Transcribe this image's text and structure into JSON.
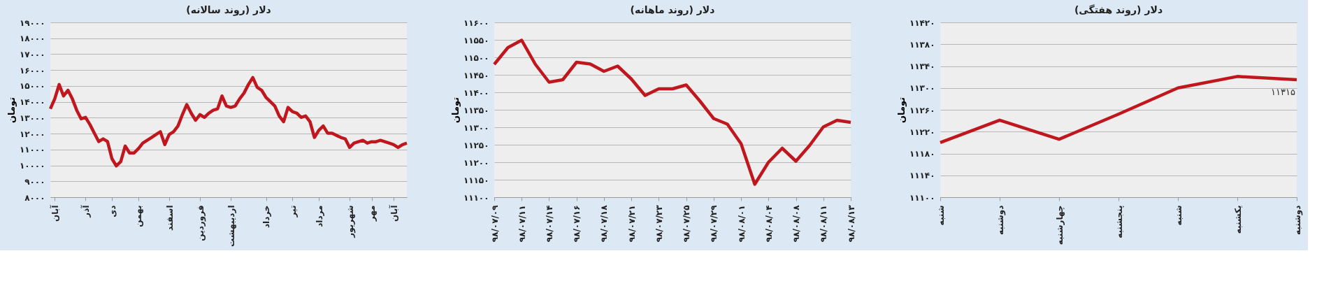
{
  "chart_data": [
    {
      "type": "line",
      "title": "دلار (روند سالانه)",
      "ylabel": "تومان",
      "grid": "y",
      "marker": "none",
      "line_style": "solid",
      "categories": [
        null,
        "آبان",
        null,
        null,
        null,
        null,
        null,
        null,
        "آذر",
        null,
        null,
        null,
        null,
        null,
        "دی",
        null,
        null,
        null,
        null,
        null,
        "بهمن",
        null,
        null,
        null,
        null,
        null,
        null,
        "اسفند",
        null,
        null,
        null,
        null,
        null,
        null,
        "فروردین",
        null,
        null,
        null,
        null,
        null,
        null,
        "اردیبهشت",
        null,
        null,
        null,
        null,
        null,
        null,
        null,
        "خرداد",
        null,
        null,
        null,
        null,
        null,
        "تیر",
        null,
        null,
        null,
        null,
        null,
        "مرداد",
        null,
        null,
        null,
        null,
        null,
        null,
        "شهریور",
        null,
        null,
        null,
        null,
        "مهر",
        null,
        null,
        null,
        null,
        "آبان",
        null,
        null,
        null
      ],
      "series": [
        {
          "color": "#c0171e",
          "values": [
            13560,
            14190,
            15090,
            14370,
            14730,
            14190,
            13470,
            12930,
            13020,
            12570,
            12030,
            11500,
            11670,
            11500,
            10420,
            9970,
            10240,
            11220,
            10780,
            10780,
            11050,
            11400,
            11580,
            11760,
            11940,
            12120,
            11310,
            11940,
            12120,
            12480,
            13200,
            13830,
            13290,
            12840,
            13200,
            13020,
            13290,
            13470,
            13560,
            14370,
            13740,
            13650,
            13740,
            14190,
            14550,
            15090,
            15530,
            14910,
            14730,
            14280,
            14010,
            13740,
            13110,
            12750,
            13650,
            13380,
            13290,
            13020,
            13110,
            12750,
            11760,
            12210,
            12480,
            12030,
            12030,
            11890,
            11760,
            11670,
            11130,
            11400,
            11490,
            11580,
            11400,
            11490,
            11490,
            11580,
            11490,
            11400,
            11310,
            11130,
            11310,
            11400
          ]
        }
      ],
      "ylim": [
        8000,
        19000
      ],
      "yticks": [
        {
          "value": 8000,
          "label": "۸۰۰۰"
        },
        {
          "value": 9000,
          "label": "۹۰۰۰"
        },
        {
          "value": 10000,
          "label": "۱۰۰۰۰"
        },
        {
          "value": 11000,
          "label": "۱۱۰۰۰"
        },
        {
          "value": 12000,
          "label": "۱۲۰۰۰"
        },
        {
          "value": 13000,
          "label": "۱۳۰۰۰"
        },
        {
          "value": 14000,
          "label": "۱۴۰۰۰"
        },
        {
          "value": 15000,
          "label": "۱۵۰۰۰"
        },
        {
          "value": 16000,
          "label": "۱۶۰۰۰"
        },
        {
          "value": 17000,
          "label": "۱۷۰۰۰"
        },
        {
          "value": 18000,
          "label": "۱۸۰۰۰"
        },
        {
          "value": 19000,
          "label": "۱۹۰۰۰"
        }
      ]
    },
    {
      "type": "line",
      "title": "دلار (روند ماهانه)",
      "ylabel": "تومان",
      "grid": "y",
      "marker": "none",
      "line_style": "solid",
      "categories": [
        "۹۸/۰۷/۰۹",
        null,
        "۹۸/۰۷/۱۱",
        null,
        "۹۸/۰۷/۱۴",
        null,
        "۹۸/۰۷/۱۶",
        null,
        "۹۸/۰۷/۱۸",
        null,
        "۹۸/۰۷/۲۱",
        null,
        "۹۸/۰۷/۲۳",
        null,
        "۹۸/۰۷/۲۵",
        null,
        "۹۸/۰۷/۲۹",
        null,
        "۹۸/۰۸/۰۱",
        null,
        "۹۸/۰۸/۰۴",
        null,
        "۹۸/۰۸/۰۸",
        null,
        "۹۸/۰۸/۱۱",
        null,
        "۹۸/۰۸/۱۳"
      ],
      "series": [
        {
          "color": "#c0171e",
          "values": [
            11480,
            11528,
            11549,
            11480,
            11429,
            11436,
            11486,
            11481,
            11460,
            11475,
            11438,
            11391,
            11410,
            11410,
            11421,
            11375,
            11325,
            11309,
            11253,
            11137,
            11200,
            11240,
            11203,
            11248,
            11301,
            11320,
            11314
          ]
        }
      ],
      "ylim": [
        11100,
        11600
      ],
      "yticks": [
        {
          "value": 11100,
          "label": "۱۱۱۰۰"
        },
        {
          "value": 11150,
          "label": "۱۱۱۵۰"
        },
        {
          "value": 11200,
          "label": "۱۱۲۰۰"
        },
        {
          "value": 11250,
          "label": "۱۱۲۵۰"
        },
        {
          "value": 11300,
          "label": "۱۱۳۰۰"
        },
        {
          "value": 11350,
          "label": "۱۱۳۵۰"
        },
        {
          "value": 11400,
          "label": "۱۱۴۰۰"
        },
        {
          "value": 11450,
          "label": "۱۱۴۵۰"
        },
        {
          "value": 11500,
          "label": "۱۱۵۰۰"
        },
        {
          "value": 11550,
          "label": "۱۱۵۵۰"
        },
        {
          "value": 11600,
          "label": "۱۱۶۰۰"
        }
      ]
    },
    {
      "type": "line",
      "title": "دلار (روند هفتگی)",
      "ylabel": "تومان",
      "grid": "y",
      "marker": "none",
      "line_style": "solid",
      "categories": [
        "شنبه",
        "دوشنبه",
        "چهارشنبه",
        "پنجشنبه",
        "شنبه",
        "یکشنبه",
        "دوشنبه"
      ],
      "series": [
        {
          "color": "#c0171e",
          "values": [
            11200,
            11241,
            11206,
            11252,
            11300,
            11321,
            11315
          ],
          "value_labels": [
            null,
            null,
            null,
            null,
            null,
            null,
            "۱۱۳۱۵"
          ]
        }
      ],
      "ylim": [
        11100,
        11420
      ],
      "yticks": [
        {
          "value": 11100,
          "label": "۱۱۱۰۰"
        },
        {
          "value": 11140,
          "label": "۱۱۱۴۰"
        },
        {
          "value": 11180,
          "label": "۱۱۱۸۰"
        },
        {
          "value": 11220,
          "label": "۱۱۲۲۰"
        },
        {
          "value": 11260,
          "label": "۱۱۲۶۰"
        },
        {
          "value": 11300,
          "label": "۱۱۳۰۰"
        },
        {
          "value": 11340,
          "label": "۱۱۳۴۰"
        },
        {
          "value": 11380,
          "label": "۱۱۳۸۰"
        },
        {
          "value": 11420,
          "label": "۱۱۴۲۰"
        }
      ]
    }
  ]
}
